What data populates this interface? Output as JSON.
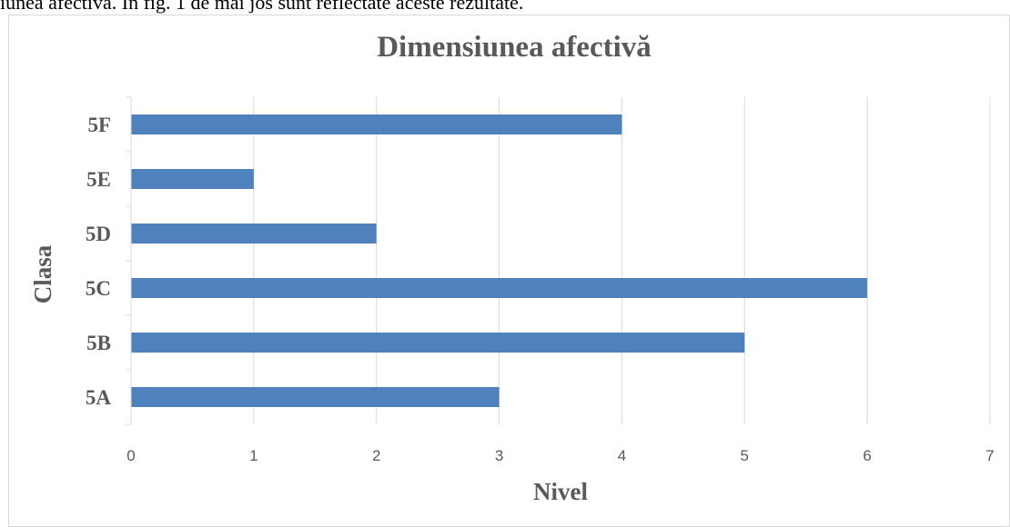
{
  "document": {
    "caption_text": "iunea afectivă. În fig. 1 de mai jos sunt reflectate aceste rezultate."
  },
  "chart_data": {
    "type": "bar",
    "orientation": "horizontal",
    "title": "Dimensiunea afectivă",
    "xlabel": "Nivel",
    "ylabel": "Clasa",
    "categories": [
      "5A",
      "5B",
      "5C",
      "5D",
      "5E",
      "5F"
    ],
    "values": [
      3,
      5,
      6,
      2,
      1,
      4
    ],
    "xlim": [
      0,
      7
    ],
    "x_ticks": [
      "0",
      "1",
      "2",
      "3",
      "4",
      "5",
      "6",
      "7"
    ],
    "grid": "vertical",
    "legend": "none",
    "colors": {
      "bar": "#4f81bd",
      "gridline": "#d9d9d9",
      "text": "#595959"
    }
  }
}
